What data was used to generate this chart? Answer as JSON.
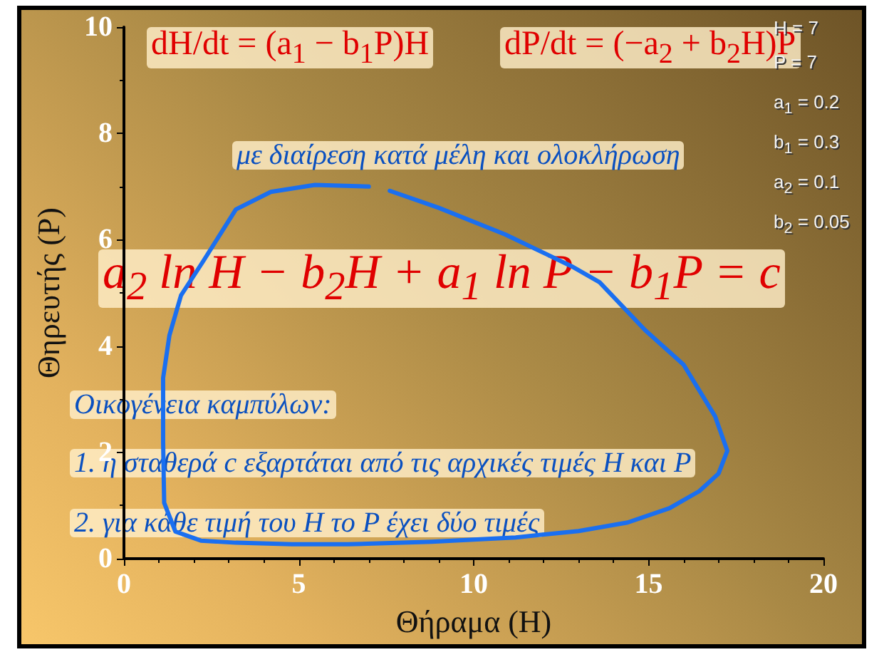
{
  "chart_data": {
    "type": "line",
    "xlabel": "Θήραμα (H)",
    "ylabel": "Θηρευτής (P)",
    "annotations": [
      "dH/dt = (a$_{1}$ − b$_{1}$P)H",
      "dP/dt = (−a$_{2}$ + b$_{2}$H)P",
      "H = 7",
      "P = 7",
      "a$_{1}$ = 0.2",
      "b$_{1}$ = 0.3",
      "a$_{2}$ = 0.1",
      "b$_{2}$ = 0.05",
      "με διαίρεση κατά μέλη και ολοκλήρωση",
      "a$_{2}$ ln H − b$_{2}$H + a$_{1}$ ln P − b$_{1}$P = c",
      "Οικογένεια καμπύλων:",
      "1. η σταθερά c εξαρτάται από τις αρχικές τιμές H και P",
      "2. για κάθε τιμή του H το P έχει δύο τιμές"
    ],
    "series": [
      {
        "color": "#1a6ff0",
        "x": [
          7,
          5.46,
          4.2,
          3.2,
          2.27,
          1.63,
          1.3,
          1.12,
          1.12,
          1.15,
          1.47,
          2.2,
          3.2,
          4.8,
          6.4,
          8.8,
          11.2,
          13,
          14.4,
          15.6,
          16.45,
          17.0,
          17.25,
          16.9,
          16.0,
          14.9,
          13.6,
          12.8,
          10.9,
          9,
          7.6
        ],
        "values": [
          7,
          7.03,
          6.9,
          6.57,
          5.6,
          4.95,
          4.2,
          3.4,
          2.2,
          1.05,
          0.51,
          0.34,
          0.3,
          0.27,
          0.27,
          0.32,
          0.4,
          0.52,
          0.68,
          0.95,
          1.27,
          1.6,
          2.03,
          2.68,
          3.65,
          4.3,
          5.2,
          5.5,
          6.1,
          6.6,
          6.92
        ]
      }
    ],
    "xlim": [
      0,
      20
    ],
    "xticks": [
      0,
      5,
      10,
      15,
      20
    ],
    "ylim": [
      0,
      10
    ],
    "yticks": [
      0,
      2,
      4,
      6,
      8,
      10
    ],
    "grid": false,
    "marker": "none",
    "line_style": "solid"
  }
}
